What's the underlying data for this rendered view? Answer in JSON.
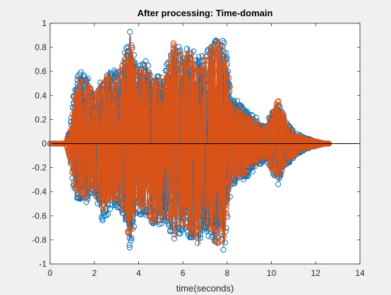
{
  "chart_data": {
    "type": "stem",
    "title": "After processing: Time-domain",
    "xlabel": "time(seconds)",
    "ylabel": "",
    "xlim": [
      0,
      14
    ],
    "ylim": [
      -1,
      1
    ],
    "xticks": [
      "0",
      "2",
      "4",
      "6",
      "8",
      "10",
      "12",
      "14"
    ],
    "yticks": [
      "1",
      "0.8",
      "0.6",
      "0.4",
      "0.2",
      "0",
      "-0.2",
      "-0.4",
      "-0.6",
      "-0.8",
      "-1"
    ],
    "grid": false,
    "legend": "none",
    "series": [
      {
        "color": "#0072bd",
        "marker": "circle",
        "envelope_x": [
          0.0,
          0.7,
          0.9,
          1.1,
          1.3,
          1.6,
          2.0,
          2.4,
          2.7,
          3.0,
          3.4,
          3.6,
          3.9,
          4.3,
          4.7,
          5.2,
          5.6,
          6.0,
          6.3,
          6.7,
          7.0,
          7.3,
          7.6,
          7.9,
          8.2,
          8.8,
          9.3,
          9.7,
          10.0,
          10.3,
          10.6,
          11.0,
          11.5,
          12.0,
          12.4,
          14.0
        ],
        "envelope_pos": [
          0.0,
          0.0,
          0.12,
          0.48,
          0.62,
          0.58,
          0.45,
          0.56,
          0.64,
          0.6,
          0.78,
          0.95,
          0.62,
          0.7,
          0.55,
          0.62,
          0.88,
          0.76,
          0.82,
          0.72,
          0.74,
          0.86,
          0.88,
          0.84,
          0.42,
          0.28,
          0.22,
          0.14,
          0.28,
          0.34,
          0.22,
          0.1,
          0.05,
          0.02,
          0.0,
          0.0
        ],
        "envelope_neg": [
          0.0,
          0.0,
          -0.14,
          -0.42,
          -0.48,
          -0.5,
          -0.42,
          -0.66,
          -0.56,
          -0.52,
          -0.62,
          -0.9,
          -0.58,
          -0.6,
          -0.7,
          -0.66,
          -0.8,
          -0.74,
          -0.8,
          -0.86,
          -0.74,
          -0.8,
          -0.9,
          -0.88,
          -0.34,
          -0.3,
          -0.2,
          -0.14,
          -0.26,
          -0.34,
          -0.2,
          -0.12,
          -0.05,
          -0.02,
          0.0,
          0.0
        ]
      },
      {
        "color": "#d95319",
        "marker": "circle",
        "envelope_x": [
          0.0,
          0.7,
          0.9,
          1.1,
          1.3,
          1.6,
          2.0,
          2.4,
          2.7,
          3.0,
          3.4,
          3.6,
          3.9,
          4.3,
          4.7,
          5.2,
          5.6,
          6.0,
          6.3,
          6.7,
          7.0,
          7.3,
          7.6,
          7.9,
          8.2,
          8.8,
          9.3,
          9.7,
          10.0,
          10.3,
          10.6,
          11.0,
          11.5,
          12.0,
          12.4,
          14.0
        ],
        "envelope_pos": [
          0.0,
          0.0,
          0.1,
          0.42,
          0.58,
          0.52,
          0.42,
          0.5,
          0.6,
          0.56,
          0.72,
          0.98,
          0.58,
          0.66,
          0.52,
          0.58,
          0.86,
          0.72,
          0.78,
          0.68,
          0.7,
          0.84,
          0.86,
          0.8,
          0.38,
          0.24,
          0.18,
          0.12,
          0.24,
          0.36,
          0.2,
          0.08,
          0.04,
          0.02,
          0.0,
          0.0
        ],
        "envelope_neg": [
          0.0,
          0.0,
          -0.12,
          -0.38,
          -0.44,
          -0.46,
          -0.38,
          -0.6,
          -0.5,
          -0.48,
          -0.58,
          -0.86,
          -0.54,
          -0.56,
          -0.66,
          -0.62,
          -0.76,
          -0.7,
          -0.76,
          -0.84,
          -0.7,
          -0.76,
          -0.88,
          -0.84,
          -0.3,
          -0.26,
          -0.16,
          -0.12,
          -0.22,
          -0.3,
          -0.16,
          -0.1,
          -0.04,
          -0.02,
          0.0,
          0.0
        ]
      }
    ]
  },
  "colors": {
    "figure_bg": "#f0f0f0",
    "axes_bg": "#ffffff",
    "axes_edge": "#262626",
    "zero_line": "#000000"
  }
}
